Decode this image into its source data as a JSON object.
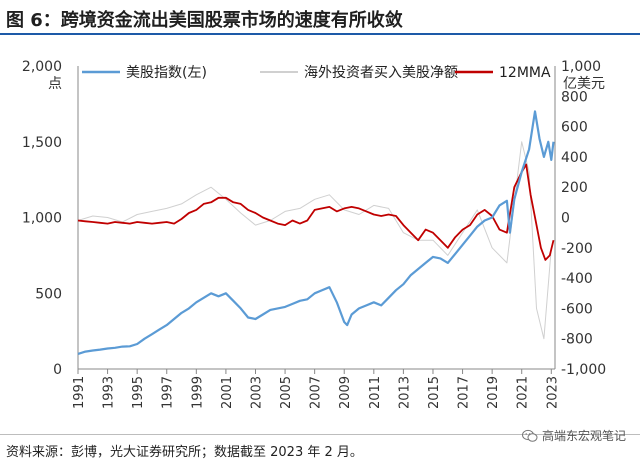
{
  "figure": {
    "title": "图 6：跨境资金流出美国股票市场的速度有所收敛",
    "source": "资料来源：彭博，光大证券研究所；数据截至 2023 年 2 月。",
    "watermark": "高端东宏观笔记",
    "watermark_icon": "wechat-icon"
  },
  "chart_data": {
    "type": "line",
    "left_axis": {
      "unit_label": "点",
      "ylim": [
        0,
        2000
      ],
      "ticks": [
        0,
        500,
        1000,
        1500,
        2000
      ],
      "tick_labels": [
        "0",
        "500",
        "1,000",
        "1,500",
        "2,000"
      ]
    },
    "right_axis": {
      "unit_label": "亿美元",
      "ylim": [
        -1000,
        1000
      ],
      "ticks": [
        -1000,
        -800,
        -600,
        -400,
        -200,
        0,
        200,
        400,
        600,
        800,
        1000
      ],
      "tick_labels": [
        "-1,000",
        "-800",
        "-600",
        "-400",
        "-200",
        "0",
        "200",
        "400",
        "600",
        "800",
        "1,000"
      ]
    },
    "x_axis": {
      "xlim": [
        1991,
        2023.25
      ],
      "tick_labels": [
        "1991",
        "1993",
        "1995",
        "1997",
        "1999",
        "2001",
        "2003",
        "2005",
        "2007",
        "2009",
        "2011",
        "2013",
        "2015",
        "2017",
        "2019",
        "2021",
        "2023"
      ]
    },
    "grid": false,
    "legend": "top",
    "colors": {
      "index": "#5b9bd5",
      "netflow": "#d0d0d0",
      "mma": "#c00000"
    },
    "series": [
      {
        "name": "美股指数(左)",
        "axis": "left",
        "x": [
          1991.0,
          1991.5,
          1992.0,
          1992.5,
          1993.0,
          1993.5,
          1994.0,
          1994.5,
          1995.0,
          1995.5,
          1996.0,
          1996.5,
          1997.0,
          1997.5,
          1998.0,
          1998.5,
          1999.0,
          1999.5,
          2000.0,
          2000.5,
          2001.0,
          2001.5,
          2002.0,
          2002.5,
          2003.0,
          2003.5,
          2004.0,
          2004.5,
          2005.0,
          2005.5,
          2006.0,
          2006.5,
          2007.0,
          2007.5,
          2008.0,
          2008.5,
          2009.0,
          2009.2,
          2009.5,
          2010.0,
          2010.5,
          2011.0,
          2011.5,
          2012.0,
          2012.5,
          2013.0,
          2013.5,
          2014.0,
          2014.5,
          2015.0,
          2015.5,
          2016.0,
          2016.5,
          2017.0,
          2017.5,
          2018.0,
          2018.5,
          2019.0,
          2019.5,
          2020.0,
          2020.2,
          2020.5,
          2021.0,
          2021.5,
          2021.9,
          2022.2,
          2022.5,
          2022.8,
          2023.0,
          2023.15
        ],
        "values": [
          100,
          115,
          122,
          128,
          135,
          140,
          148,
          150,
          165,
          200,
          230,
          260,
          290,
          330,
          370,
          400,
          440,
          470,
          500,
          480,
          500,
          450,
          400,
          340,
          330,
          360,
          390,
          400,
          410,
          430,
          450,
          460,
          500,
          520,
          540,
          440,
          310,
          290,
          360,
          400,
          420,
          440,
          420,
          470,
          520,
          560,
          620,
          660,
          700,
          740,
          730,
          700,
          760,
          820,
          880,
          940,
          980,
          1000,
          1080,
          1110,
          900,
          1120,
          1300,
          1450,
          1700,
          1520,
          1400,
          1500,
          1380,
          1500
        ]
      },
      {
        "name": "海外投资者买入美股净额",
        "axis": "right",
        "x": [
          1991.0,
          1992.0,
          1993.0,
          1994.0,
          1995.0,
          1996.0,
          1997.0,
          1998.0,
          1999.0,
          2000.0,
          2001.0,
          2002.0,
          2003.0,
          2004.0,
          2005.0,
          2006.0,
          2007.0,
          2008.0,
          2009.0,
          2010.0,
          2011.0,
          2012.0,
          2013.0,
          2014.0,
          2015.0,
          2016.0,
          2017.0,
          2018.0,
          2019.0,
          2020.0,
          2021.0,
          2021.5,
          2022.0,
          2022.5,
          2023.0
        ],
        "values": [
          -20,
          10,
          0,
          -30,
          20,
          40,
          60,
          90,
          150,
          200,
          120,
          30,
          -50,
          -20,
          40,
          60,
          120,
          150,
          50,
          20,
          80,
          60,
          -100,
          -150,
          -150,
          -250,
          -100,
          50,
          -200,
          -300,
          500,
          300,
          -600,
          -800,
          -200
        ]
      },
      {
        "name": "12MMA",
        "axis": "right",
        "x": [
          1991.0,
          1991.5,
          1992.0,
          1992.5,
          1993.0,
          1993.5,
          1994.0,
          1994.5,
          1995.0,
          1995.5,
          1996.0,
          1996.5,
          1997.0,
          1997.5,
          1998.0,
          1998.5,
          1999.0,
          1999.5,
          2000.0,
          2000.5,
          2001.0,
          2001.5,
          2002.0,
          2002.5,
          2003.0,
          2003.5,
          2004.0,
          2004.5,
          2005.0,
          2005.5,
          2006.0,
          2006.5,
          2007.0,
          2007.5,
          2008.0,
          2008.5,
          2009.0,
          2009.5,
          2010.0,
          2010.5,
          2011.0,
          2011.5,
          2012.0,
          2012.5,
          2013.0,
          2013.5,
          2014.0,
          2014.5,
          2015.0,
          2015.5,
          2016.0,
          2016.5,
          2017.0,
          2017.5,
          2018.0,
          2018.5,
          2019.0,
          2019.5,
          2020.0,
          2020.5,
          2021.0,
          2021.3,
          2021.6,
          2022.0,
          2022.3,
          2022.6,
          2022.9,
          2023.15
        ],
        "values": [
          -20,
          -25,
          -30,
          -35,
          -40,
          -30,
          -35,
          -40,
          -30,
          -35,
          -40,
          -35,
          -30,
          -40,
          -10,
          30,
          50,
          90,
          100,
          130,
          130,
          100,
          90,
          50,
          30,
          0,
          -20,
          -40,
          -50,
          -20,
          -40,
          -20,
          50,
          60,
          70,
          40,
          60,
          70,
          60,
          40,
          20,
          10,
          20,
          10,
          -50,
          -100,
          -150,
          -80,
          -100,
          -150,
          -200,
          -130,
          -80,
          -50,
          20,
          50,
          10,
          -80,
          -100,
          200,
          300,
          350,
          150,
          -50,
          -200,
          -280,
          -250,
          -150
        ]
      }
    ]
  }
}
